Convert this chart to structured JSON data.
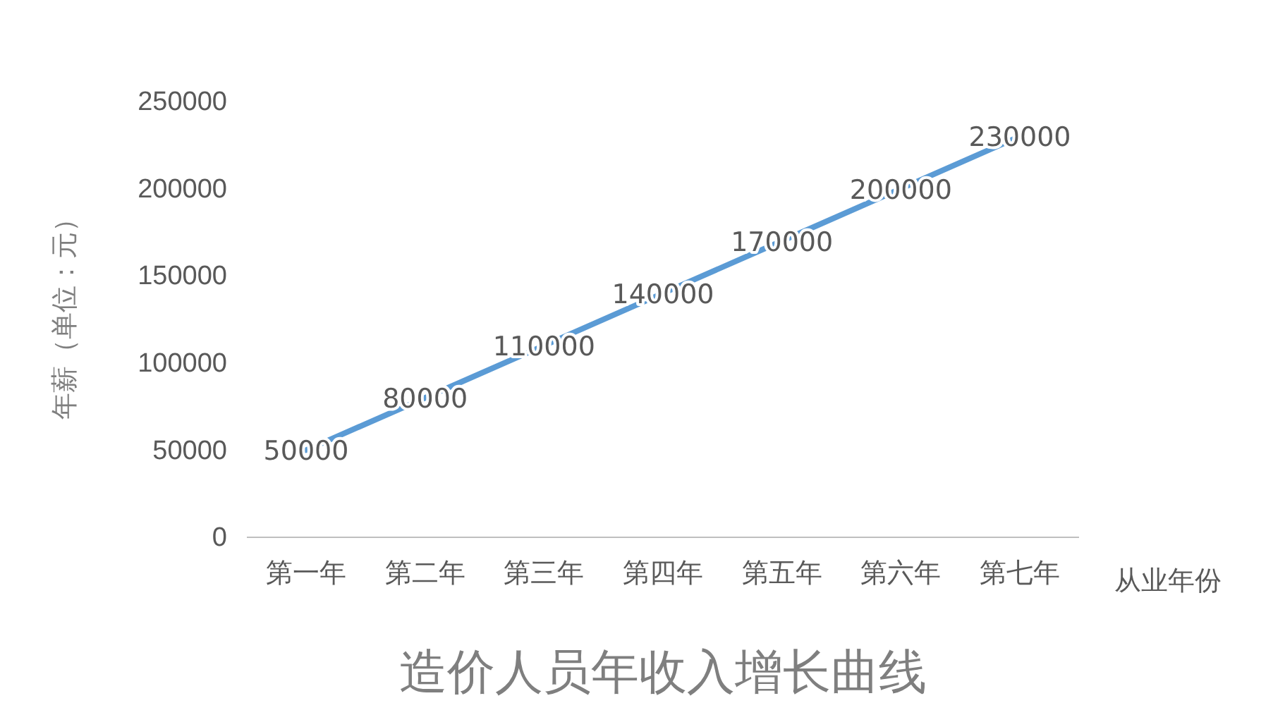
{
  "chart_data": {
    "type": "line",
    "title": "造价人员年收入增长曲线",
    "xlabel": "从业年份",
    "ylabel": "年薪（单位：元）",
    "categories": [
      "第一年",
      "第二年",
      "第三年",
      "第四年",
      "第五年",
      "第六年",
      "第七年"
    ],
    "series": [
      {
        "color": "#5b9bd5",
        "values": [
          50000,
          80000,
          110000,
          140000,
          170000,
          200000,
          230000
        ]
      }
    ],
    "ylim": [
      0,
      250000
    ],
    "yticks": [
      0,
      50000,
      100000,
      150000,
      200000,
      250000
    ],
    "data_labels": true,
    "grid": false,
    "marker": "none",
    "line_style": "solid"
  }
}
